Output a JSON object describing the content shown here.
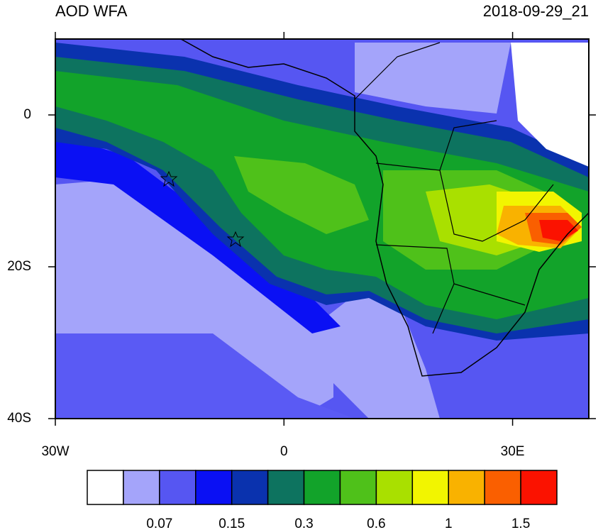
{
  "chart_data": {
    "type": "map",
    "title": "AOD WFA",
    "subtitle": "2018-09-29_21",
    "xlim": [
      -30,
      40
    ],
    "ylim": [
      -40,
      10
    ],
    "xticks": [
      {
        "value": -30,
        "label": "30W"
      },
      0,
      {
        "value": 30,
        "label": "30E"
      }
    ],
    "yticks": [
      0,
      {
        "value": -20,
        "label": "20S"
      },
      {
        "value": -40,
        "label": "40S"
      }
    ],
    "colorbar": {
      "colors": [
        "#ffffff",
        "#a4a4fa",
        "#5656f2",
        "#0a10f4",
        "#0a32ae",
        "#0d735f",
        "#12a32a",
        "#4fc11a",
        "#a9e000",
        "#f2f500",
        "#f9b200",
        "#fa5f00",
        "#fb1200"
      ],
      "boundaries": [
        null,
        0.07,
        null,
        0.15,
        null,
        0.3,
        null,
        0.6,
        null,
        1,
        null,
        1.5
      ]
    }
  }
}
